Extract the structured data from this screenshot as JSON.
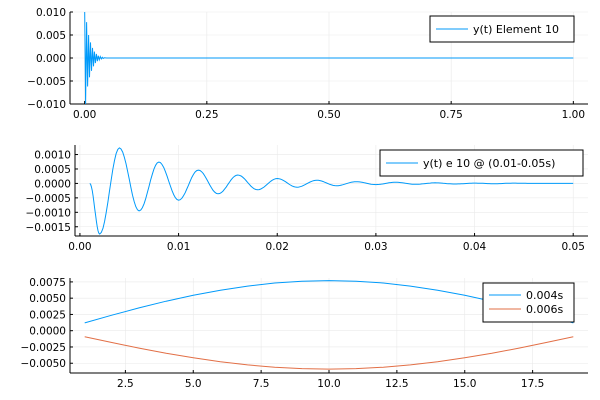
{
  "colors": {
    "blue": "#009AFA",
    "orange": "#E26F46"
  },
  "chart_data": [
    {
      "type": "line",
      "title": "",
      "xlabel": "",
      "ylabel": "",
      "xlim": [
        -0.03,
        1.03
      ],
      "ylim": [
        -0.01,
        0.01
      ],
      "xticks": [
        0,
        0.25,
        0.5,
        0.75,
        1.0
      ],
      "xtick_labels": [
        "0.00",
        "0.25",
        "0.50",
        "0.75",
        "1.00"
      ],
      "yticks": [
        0.01,
        0.005,
        0.0,
        -0.005,
        -0.01
      ],
      "ytick_labels": [
        "0.010",
        "0.005",
        "0.000",
        "−0.005",
        "−0.010"
      ],
      "grid": true,
      "legend_position": "top-right",
      "series": [
        {
          "name": "y(t) Element 10",
          "color": "blue",
          "x": [
            0,
            0.002,
            0.004,
            0.006,
            0.008,
            0.01,
            0.012,
            0.014,
            0.016,
            0.018,
            0.02,
            0.022,
            0.024,
            0.026,
            0.028,
            0.03,
            0.032,
            0.034,
            0.036,
            0.038,
            0.04,
            0.045,
            0.05,
            0.1,
            0.25,
            0.5,
            0.75,
            1.0
          ],
          "y": [
            0.01,
            -0.01,
            0.0078,
            -0.0062,
            0.005,
            -0.0042,
            0.0034,
            -0.0028,
            0.0022,
            -0.0018,
            0.0014,
            -0.0011,
            0.0009,
            -0.0007,
            0.0005,
            -0.0004,
            0.0003,
            -0.0002,
            0.00015,
            -0.0001,
            5e-05,
            0.0,
            0.0,
            0.0,
            0.0,
            0.0,
            0.0,
            0.0
          ]
        }
      ]
    },
    {
      "type": "line",
      "title": "",
      "xlabel": "",
      "ylabel": "",
      "xlim": [
        -0.0005,
        0.0515
      ],
      "ylim": [
        -0.00182,
        0.00133
      ],
      "xticks": [
        0,
        0.01,
        0.02,
        0.03,
        0.04,
        0.05
      ],
      "xtick_labels": [
        "0.00",
        "0.01",
        "0.02",
        "0.03",
        "0.04",
        "0.05"
      ],
      "yticks": [
        0.001,
        0.0005,
        0.0,
        -0.0005,
        -0.001,
        -0.0015
      ],
      "ytick_labels": [
        "0.0010",
        "0.0005",
        "0.0000",
        "−0.0005",
        "−0.0010",
        "−0.0015"
      ],
      "grid": true,
      "legend_position": "top-right",
      "series": [
        {
          "name": "y(t) e 10 @ (0.01-0.05s)",
          "color": "blue",
          "x": [
            0.001,
            0.002,
            0.004,
            0.006,
            0.008,
            0.01,
            0.012,
            0.014,
            0.016,
            0.018,
            0.02,
            0.022,
            0.024,
            0.026,
            0.028,
            0.03,
            0.032,
            0.034,
            0.036,
            0.038,
            0.04,
            0.042,
            0.044,
            0.046,
            0.048,
            0.05
          ],
          "y": [
            0.0,
            -0.00175,
            0.00123,
            -0.00095,
            0.00074,
            -0.00058,
            0.00046,
            -0.00036,
            0.00029,
            -0.00022,
            0.00017,
            -0.00013,
            0.00011,
            -8e-05,
            6e-05,
            -4e-05,
            4e-05,
            -3e-05,
            2e-05,
            -2e-05,
            1e-05,
            -1e-05,
            1e-05,
            0.0,
            0.0,
            0.0
          ]
        }
      ]
    },
    {
      "type": "line",
      "title": "",
      "xlabel": "",
      "ylabel": "",
      "xlim": [
        0.46,
        19.54
      ],
      "ylim": [
        -0.0065,
        0.0081
      ],
      "xticks": [
        2.5,
        5.0,
        7.5,
        10.0,
        12.5,
        15.0,
        17.5
      ],
      "xtick_labels": [
        "2.5",
        "5.0",
        "7.5",
        "10.0",
        "12.5",
        "15.0",
        "17.5"
      ],
      "yticks": [
        0.0075,
        0.005,
        0.0025,
        0.0,
        -0.0025,
        -0.005
      ],
      "ytick_labels": [
        "0.0075",
        "0.0050",
        "0.0025",
        "0.0000",
        "−0.0025",
        "−0.0050"
      ],
      "grid": true,
      "legend_position": "top-right",
      "series": [
        {
          "name": "0.004s",
          "color": "blue",
          "x": [
            1,
            2,
            3,
            4,
            5,
            6,
            7,
            8,
            9,
            10,
            11,
            12,
            13,
            14,
            15,
            16,
            17,
            18,
            19
          ],
          "y": [
            0.0012,
            0.00238,
            0.0035,
            0.00453,
            0.00544,
            0.00623,
            0.00686,
            0.00733,
            0.00761,
            0.0077,
            0.00761,
            0.00733,
            0.00686,
            0.00623,
            0.00544,
            0.00453,
            0.0035,
            0.00238,
            0.0012
          ]
        },
        {
          "name": "0.006s",
          "color": "orange",
          "x": [
            1,
            2,
            3,
            4,
            5,
            6,
            7,
            8,
            9,
            10,
            11,
            12,
            13,
            14,
            15,
            16,
            17,
            18,
            19
          ],
          "y": [
            -0.00092,
            -0.00182,
            -0.00268,
            -0.00347,
            -0.00417,
            -0.00477,
            -0.00526,
            -0.00561,
            -0.00583,
            -0.0059,
            -0.00583,
            -0.00561,
            -0.00526,
            -0.00477,
            -0.00417,
            -0.00347,
            -0.00268,
            -0.00182,
            -0.00092
          ]
        }
      ]
    }
  ]
}
